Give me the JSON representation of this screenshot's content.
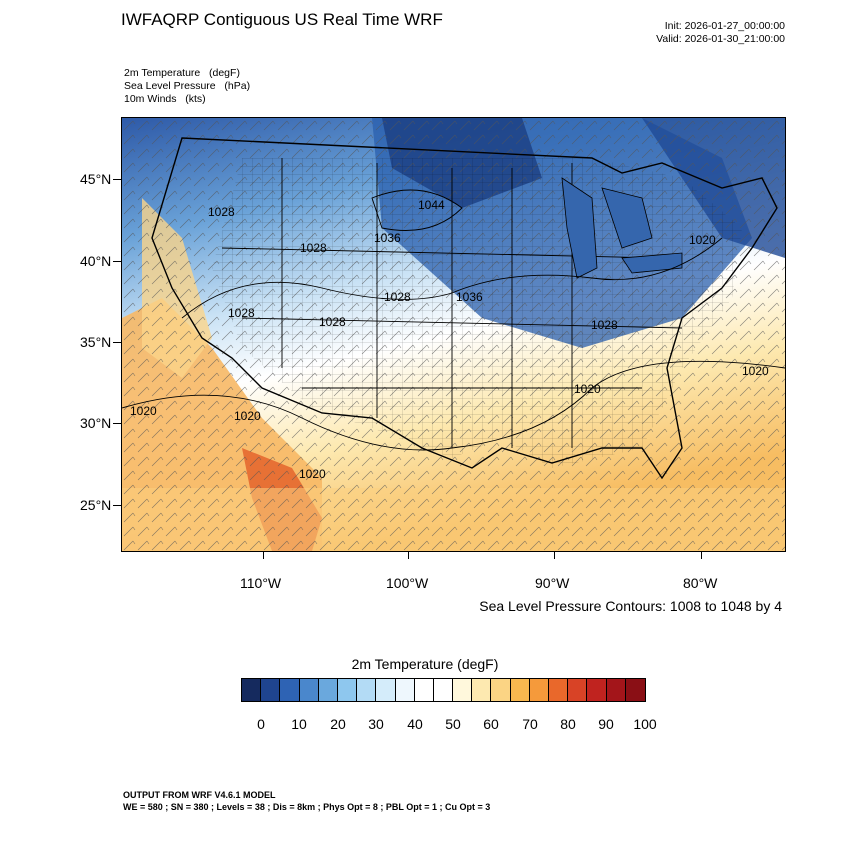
{
  "header": {
    "title": "IWFAQRP Contiguous US Real Time WRF",
    "init": "Init: 2026-01-27_00:00:00",
    "valid": "Valid: 2026-01-30_21:00:00"
  },
  "fields": [
    "2m Temperature   (degF)",
    "Sea Level Pressure   (hPa)",
    "10m Winds   (kts)"
  ],
  "map": {
    "lat_labels": [
      "45°N",
      "40°N",
      "35°N",
      "30°N",
      "25°N"
    ],
    "lon_labels": [
      "110°W",
      "100°W",
      "90°W",
      "80°W"
    ],
    "pressure_labels": [
      "1028",
      "1028",
      "1036",
      "1044",
      "1028",
      "1036",
      "1028",
      "1028",
      "1020",
      "1020",
      "1020",
      "1020",
      "1028",
      "1020",
      "1020"
    ],
    "contour_note": "Sea Level Pressure Contours: 1008 to 1048 by 4"
  },
  "colorbar": {
    "title": "2m Temperature  (degF)",
    "labels": [
      "0",
      "10",
      "20",
      "30",
      "40",
      "50",
      "60",
      "70",
      "80",
      "90",
      "100"
    ],
    "colors": [
      "#152a5e",
      "#1f448f",
      "#2e63b4",
      "#4a87cc",
      "#6aa8dd",
      "#8ec7ee",
      "#b3dbf5",
      "#d4ecfa",
      "#eef7fd",
      "#ffffff",
      "#ffffff",
      "#fff8dc",
      "#fde9b0",
      "#fbd484",
      "#f8b84f",
      "#f59a3b",
      "#e9682b",
      "#d84326",
      "#c0231f",
      "#a3151a",
      "#8a0f15"
    ]
  },
  "footer": {
    "line1": "OUTPUT FROM WRF V4.6.1 MODEL",
    "line2": "WE = 580 ; SN = 380 ; Levels = 38 ; Dis = 8km ; Phys Opt = 8 ; PBL Opt = 1 ; Cu Opt = 3"
  }
}
